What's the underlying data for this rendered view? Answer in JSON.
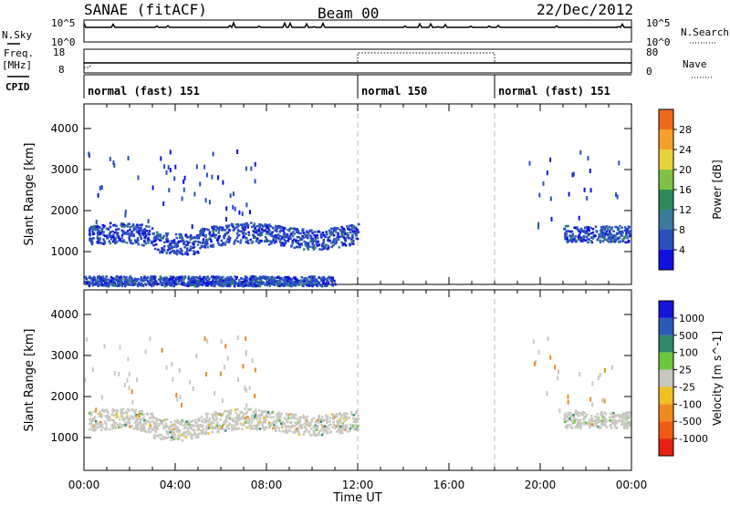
{
  "header": {
    "station": "SANAE (fitACF)",
    "beam": "Beam 00",
    "date": "22/Dec/2012"
  },
  "strip_labels": {
    "nsky": "N.Sky",
    "nsky_hi": "10^5",
    "nsky_lo": "10^0",
    "nsearch": "N.Search",
    "nsearch_hi": "10^5",
    "nsearch_lo": "10^0",
    "freq_line1": "Freq.",
    "freq_line2": "[MHz]",
    "freq_hi": "18",
    "freq_lo": "8",
    "nave": "Nave",
    "nave_hi": "80",
    "nave_lo": "0",
    "cpid": "CPID"
  },
  "cpid_segments": [
    {
      "start": 0,
      "end": 12,
      "label": "normal (fast) 151"
    },
    {
      "start": 12,
      "end": 18,
      "label": "normal 150"
    },
    {
      "start": 18,
      "end": 24,
      "label": "normal (fast) 151"
    }
  ],
  "colors": {
    "power": [
      "#1010e0",
      "#2a4fbf",
      "#3a7a9a",
      "#2e8b57",
      "#7dc242",
      "#e8d23a",
      "#f4a028",
      "#f06a1e",
      "#e8201e"
    ],
    "velocity": [
      "#1414d8",
      "#2a5ab8",
      "#2e8a6a",
      "#6ac83c",
      "#c8c8c0",
      "#f0c020",
      "#f08a1e",
      "#f05a14",
      "#e82014"
    ]
  },
  "chart_data": [
    {
      "type": "heatmap",
      "name": "power",
      "ylabel": "Slant Range [km]",
      "yticks": [
        1000,
        2000,
        3000,
        4000
      ],
      "ylim": [
        200,
        4600
      ],
      "xlim": [
        0,
        24
      ],
      "colorbar_label": "Power [dB]",
      "colorbar_ticks": [
        "4",
        "8",
        "12",
        "16",
        "20",
        "24",
        "28"
      ],
      "colorbar_range": [
        0,
        30
      ],
      "scatter_bands": [
        {
          "x": [
            0.2,
            12.0
          ],
          "y_center": 1400,
          "y_width": 250,
          "note_level": 2
        },
        {
          "x": [
            21.0,
            23.9
          ],
          "y_center": 1450,
          "y_width": 200,
          "note_level": 2
        },
        {
          "x": [
            0.0,
            11.0
          ],
          "y_center": 300,
          "y_width": 120,
          "note_level": 1
        }
      ]
    },
    {
      "type": "heatmap",
      "name": "velocity",
      "ylabel": "Slant Range [km]",
      "yticks": [
        1000,
        2000,
        3000,
        4000
      ],
      "ylim": [
        200,
        4600
      ],
      "xlim": [
        0,
        24
      ],
      "colorbar_label": "Velocity [m s^-1]",
      "colorbar_ticks": [
        "1000",
        "500",
        "100",
        "25",
        "-25",
        "-100",
        "-500",
        "-1000"
      ],
      "scatter_bands": [
        {
          "x": [
            0.2,
            12.0
          ],
          "y_center": 1400,
          "y_width": 250,
          "note_level": 4
        },
        {
          "x": [
            21.0,
            23.9
          ],
          "y_center": 1450,
          "y_width": 200,
          "note_level": 4
        }
      ]
    }
  ],
  "x_axis": {
    "ticks": [
      "00:00",
      "04:00",
      "08:00",
      "12:00",
      "16:00",
      "20:00",
      "00:00"
    ],
    "label": "Time UT"
  }
}
